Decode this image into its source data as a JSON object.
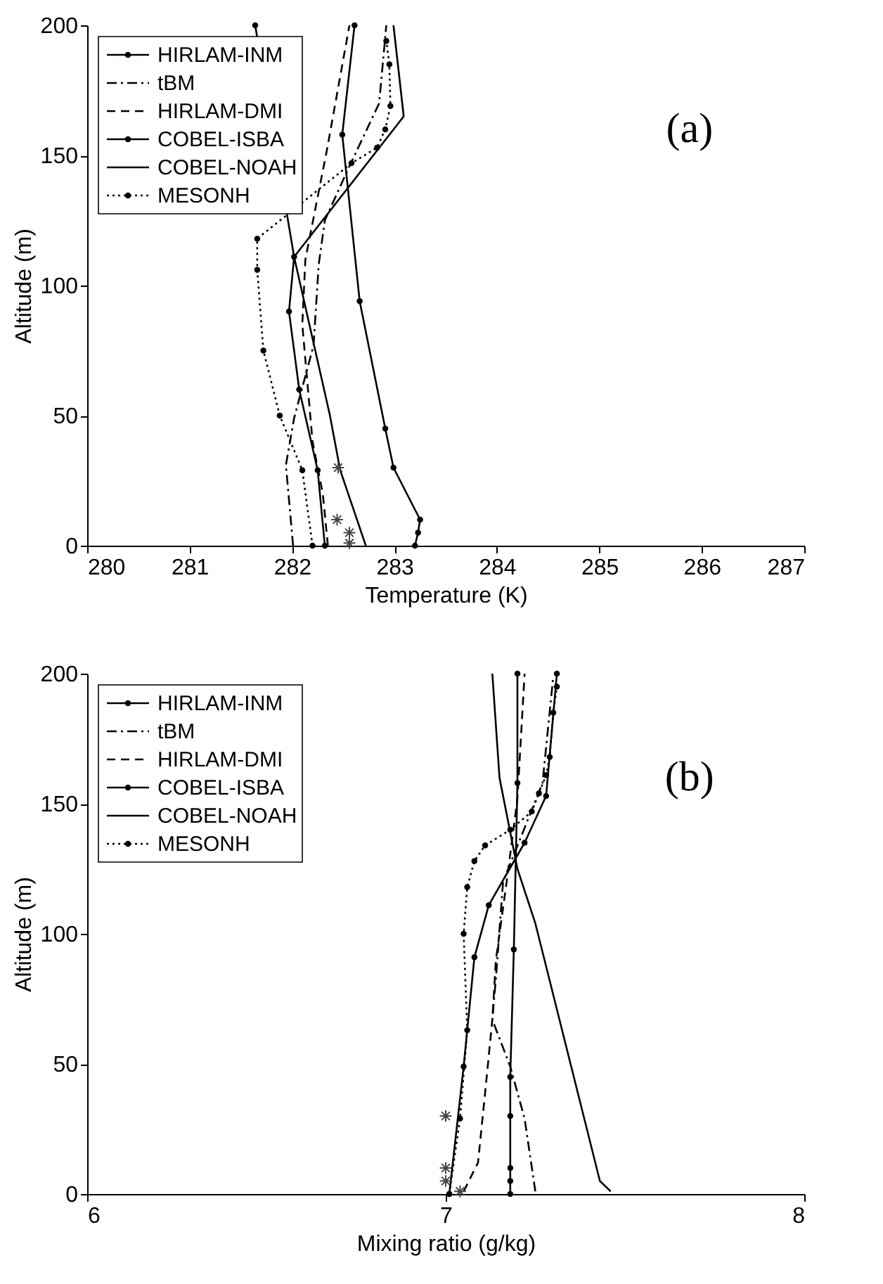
{
  "chart_data": [
    {
      "type": "line",
      "xlabel": "Temperature (K)",
      "ylabel": "Altitude (m)",
      "annotations": [
        "(a)"
      ],
      "xlim": [
        280,
        287
      ],
      "xticks": [
        280,
        281,
        282,
        283,
        284,
        285,
        286,
        287
      ],
      "ylim": [
        0,
        200
      ],
      "yticks": [
        0,
        50,
        100,
        150,
        200
      ],
      "grid": false,
      "legend": "top left",
      "series": [
        {
          "name": "HIRLAM-INM",
          "color": "#000000",
          "line_style": "solid",
          "marker": "circle",
          "x": [
            283.2,
            283.23,
            283.25,
            282.99,
            282.91,
            282.66,
            282.49,
            282.61
          ],
          "values": [
            0,
            5,
            10,
            30,
            45,
            94,
            158,
            200
          ]
        },
        {
          "name": "tBM",
          "color": "#000000",
          "line_style": "dashdot",
          "x": [
            282.01,
            281.94,
            282.02,
            282.21,
            282.26,
            282.32,
            282.55,
            282.85,
            282.92
          ],
          "values": [
            0,
            31,
            49,
            77,
            108,
            125,
            145,
            170,
            200
          ]
        },
        {
          "name": "HIRLAM-DMI",
          "color": "#000000",
          "line_style": "dashed",
          "x": [
            282.35,
            282.3,
            282.2,
            282.1,
            282.13,
            282.34,
            282.56
          ],
          "values": [
            0,
            20,
            40,
            85,
            110,
            152,
            200
          ]
        },
        {
          "name": "COBEL-ISBA",
          "color": "#000000",
          "line_style": "solid",
          "marker": "circle",
          "x": [
            282.32,
            282.25,
            282.07,
            281.97,
            282.02,
            281.64
          ],
          "values": [
            0,
            29,
            60,
            90,
            111,
            200
          ]
        },
        {
          "name": "COBEL-NOAH",
          "color": "#000000",
          "line_style": "solid",
          "x": [
            282.72,
            282.47,
            282.37,
            282.02,
            283.09,
            282.99
          ],
          "values": [
            0,
            29,
            50,
            111,
            165,
            200
          ]
        },
        {
          "name": "MESONH",
          "color": "#000000",
          "line_style": "dotted",
          "marker": "circle",
          "x": [
            282.2,
            282.1,
            281.88,
            281.72,
            281.66,
            281.66,
            282.58,
            282.83,
            282.91,
            282.96,
            282.95,
            282.92
          ],
          "values": [
            0,
            29,
            50,
            75,
            106,
            118,
            147,
            153,
            160,
            169,
            185,
            194
          ]
        },
        {
          "type": "scatter",
          "color": "#444444",
          "marker": "cross",
          "x": [
            282.45,
            282.44,
            282.56,
            282.56
          ],
          "values": [
            30,
            10,
            5,
            1
          ]
        }
      ]
    },
    {
      "type": "line",
      "xlabel": "Mixing ratio (g/kg)",
      "ylabel": "Altitude (m)",
      "annotations": [
        "(b)"
      ],
      "xlim": [
        6,
        8
      ],
      "xticks": [
        6,
        7,
        8
      ],
      "ylim": [
        0,
        200
      ],
      "yticks": [
        0,
        50,
        100,
        150,
        200
      ],
      "grid": false,
      "legend": "top left",
      "series": [
        {
          "name": "HIRLAM-INM",
          "color": "#000000",
          "line_style": "solid",
          "marker": "circle",
          "x": [
            7.18,
            7.18,
            7.18,
            7.18,
            7.18,
            7.19,
            7.2,
            7.2
          ],
          "values": [
            0,
            5,
            10,
            30,
            45,
            94,
            158,
            200
          ]
        },
        {
          "name": "tBM",
          "color": "#000000",
          "line_style": "dashdot",
          "x": [
            7.25,
            7.22,
            7.18,
            7.13,
            7.14,
            7.16,
            7.27,
            7.3
          ],
          "values": [
            1,
            29,
            49,
            67,
            83,
            120,
            158,
            199
          ]
        },
        {
          "name": "HIRLAM-DMI",
          "color": "#000000",
          "line_style": "dashed",
          "x": [
            7.05,
            7.09,
            7.11,
            7.13,
            7.14,
            7.17,
            7.2,
            7.22
          ],
          "values": [
            1,
            12,
            39,
            67,
            90,
            120,
            152,
            200
          ]
        },
        {
          "name": "COBEL-ISBA",
          "color": "#000000",
          "line_style": "solid",
          "marker": "circle",
          "x": [
            7.01,
            7.05,
            7.08,
            7.12,
            7.22,
            7.28,
            7.31
          ],
          "values": [
            0,
            49,
            91,
            111,
            135,
            153,
            200
          ]
        },
        {
          "name": "COBEL-NOAH",
          "color": "#000000",
          "line_style": "solid",
          "x": [
            7.46,
            7.43,
            7.25,
            7.2,
            7.15,
            7.13
          ],
          "values": [
            1,
            5,
            104,
            125,
            160,
            200
          ]
        },
        {
          "name": "MESONH",
          "color": "#000000",
          "line_style": "dotted",
          "marker": "circle",
          "x": [
            7.01,
            7.04,
            7.06,
            7.05,
            7.06,
            7.08,
            7.11,
            7.18,
            7.24,
            7.26,
            7.28,
            7.29,
            7.3,
            7.31
          ],
          "values": [
            0,
            29,
            63,
            100,
            118,
            128,
            134,
            140,
            147,
            154,
            161,
            168,
            185,
            195
          ]
        },
        {
          "type": "scatter",
          "color": "#444444",
          "marker": "cross",
          "x": [
            7.0,
            7.0,
            7.0,
            7.04
          ],
          "values": [
            30,
            10,
            5,
            1
          ]
        }
      ]
    }
  ]
}
